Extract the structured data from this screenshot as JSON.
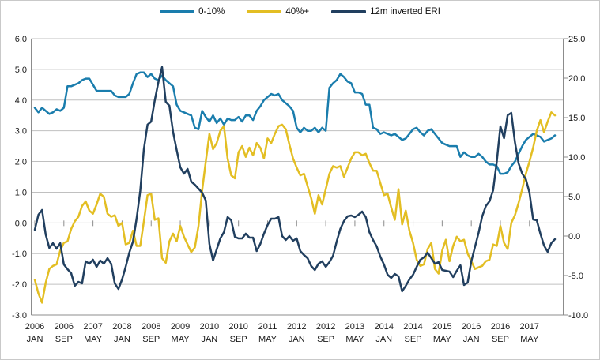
{
  "legend": {
    "items": [
      {
        "label": "0-10%",
        "color": "#1A7DAD"
      },
      {
        "label": "40%+",
        "color": "#E3BE23"
      },
      {
        "label": "12m inverted ERI",
        "color": "#213F5F"
      }
    ]
  },
  "chart_data": {
    "type": "line",
    "title": "",
    "x_interval": "monthly",
    "x_start": "2006 JAN",
    "x_end": "2017 DEC",
    "grid": true,
    "legend_position": "top-center",
    "x_tick_labels": [
      {
        "year": "2006",
        "month": "JAN"
      },
      {
        "year": "2006",
        "month": "SEP"
      },
      {
        "year": "2007",
        "month": "MAY"
      },
      {
        "year": "2008",
        "month": "JAN"
      },
      {
        "year": "2008",
        "month": "SEP"
      },
      {
        "year": "2009",
        "month": "MAY"
      },
      {
        "year": "2010",
        "month": "JAN"
      },
      {
        "year": "2010",
        "month": "SEP"
      },
      {
        "year": "2011",
        "month": "MAY"
      },
      {
        "year": "2012",
        "month": "JAN"
      },
      {
        "year": "2012",
        "month": "SEP"
      },
      {
        "year": "2013",
        "month": "MAY"
      },
      {
        "year": "2014",
        "month": "JAN"
      },
      {
        "year": "2014",
        "month": "SEP"
      },
      {
        "year": "2015",
        "month": "MAY"
      },
      {
        "year": "2016",
        "month": "JAN"
      },
      {
        "year": "2016",
        "month": "SEP"
      },
      {
        "year": "2017",
        "month": "MAY"
      }
    ],
    "x_tick_every_n_months": 8,
    "left_axis": {
      "min": -3.0,
      "max": 6.0,
      "step": 1.0,
      "tick_labels": [
        "6.0",
        "5.0",
        "4.0",
        "3.0",
        "2.0",
        "1.0",
        "0.0",
        "-1.0",
        "-2.0",
        "-3.0"
      ]
    },
    "right_axis": {
      "min": -10.0,
      "max": 25.0,
      "step": 5.0,
      "tick_labels": [
        "25.0",
        "20.0",
        "15.0",
        "10.0",
        "5.0",
        "0.0",
        "-5.0",
        "-10.0"
      ]
    },
    "series": [
      {
        "name": "0-10%",
        "axis": "left",
        "color": "#1A7DAD",
        "values": [
          3.75,
          3.6,
          3.75,
          3.65,
          3.55,
          3.6,
          3.7,
          3.65,
          3.75,
          4.45,
          4.45,
          4.5,
          4.55,
          4.65,
          4.7,
          4.7,
          4.5,
          4.3,
          4.3,
          4.3,
          4.3,
          4.3,
          4.15,
          4.1,
          4.1,
          4.1,
          4.2,
          4.55,
          4.85,
          4.9,
          4.9,
          4.75,
          4.85,
          4.7,
          4.65,
          4.8,
          4.65,
          4.55,
          4.45,
          3.85,
          3.65,
          3.6,
          3.55,
          3.5,
          3.1,
          3.05,
          3.65,
          3.45,
          3.3,
          3.5,
          3.25,
          3.4,
          3.2,
          3.4,
          3.35,
          3.35,
          3.45,
          3.3,
          3.5,
          3.5,
          3.35,
          3.65,
          3.8,
          4.0,
          4.1,
          4.2,
          4.15,
          4.2,
          4.0,
          3.9,
          3.8,
          3.65,
          3.1,
          2.95,
          3.1,
          3.0,
          3.0,
          3.1,
          2.95,
          3.1,
          3.0,
          4.4,
          4.55,
          4.65,
          4.85,
          4.75,
          4.6,
          4.55,
          4.25,
          4.25,
          4.2,
          3.85,
          3.85,
          3.1,
          3.05,
          2.9,
          2.95,
          2.9,
          2.85,
          2.9,
          2.8,
          2.7,
          2.75,
          2.9,
          3.05,
          3.1,
          2.95,
          2.85,
          3.0,
          3.05,
          2.9,
          2.75,
          2.6,
          2.55,
          2.5,
          2.5,
          2.5,
          2.15,
          2.3,
          2.2,
          2.15,
          2.15,
          2.25,
          2.15,
          2.0,
          1.9,
          1.9,
          1.85,
          1.6,
          1.6,
          1.65,
          1.85,
          2.0,
          2.25,
          2.5,
          2.7,
          2.8,
          2.9,
          2.85,
          2.8,
          2.65,
          2.7,
          2.75,
          2.85
        ]
      },
      {
        "name": "40%+",
        "axis": "left",
        "color": "#E3BE23",
        "values": [
          -1.85,
          -2.3,
          -2.6,
          -1.95,
          -1.5,
          -1.4,
          -1.35,
          -0.9,
          -0.65,
          -0.6,
          -0.2,
          0.05,
          0.2,
          0.55,
          0.7,
          0.4,
          0.3,
          0.6,
          0.95,
          0.85,
          0.3,
          0.2,
          0.25,
          -0.1,
          0.0,
          -0.7,
          -0.65,
          -0.25,
          -0.75,
          -0.75,
          0.05,
          0.9,
          0.95,
          0.1,
          0.15,
          -1.15,
          -1.3,
          -0.6,
          -0.35,
          -0.6,
          -0.1,
          -0.45,
          -0.7,
          -0.95,
          -0.8,
          -0.1,
          1.05,
          2.0,
          2.9,
          2.4,
          2.6,
          3.0,
          3.15,
          2.1,
          1.55,
          1.45,
          2.3,
          2.5,
          2.15,
          2.45,
          2.2,
          2.6,
          2.45,
          2.1,
          2.75,
          2.6,
          2.9,
          3.15,
          3.2,
          3.05,
          2.55,
          2.1,
          1.8,
          1.55,
          1.6,
          1.2,
          0.8,
          0.3,
          0.9,
          0.6,
          1.1,
          1.6,
          1.85,
          1.8,
          1.85,
          1.5,
          1.8,
          2.1,
          2.3,
          2.3,
          2.2,
          2.25,
          1.95,
          1.7,
          1.7,
          1.3,
          0.9,
          0.95,
          0.5,
          0.1,
          1.1,
          -0.05,
          0.4,
          -0.25,
          -0.65,
          -1.2,
          -1.4,
          -1.35,
          -0.85,
          -0.65,
          -1.5,
          -1.65,
          -0.9,
          -0.55,
          -1.25,
          -0.75,
          -0.45,
          -0.6,
          -0.55,
          -1.0,
          -1.25,
          -1.5,
          -1.45,
          -1.4,
          -1.25,
          -1.2,
          -0.7,
          -0.75,
          -0.1,
          -0.65,
          -0.85,
          0.0,
          0.25,
          0.65,
          1.1,
          1.6,
          2.0,
          2.45,
          3.0,
          3.35,
          2.95,
          3.3,
          3.6,
          3.5
        ]
      },
      {
        "name": "12m inverted ERI",
        "axis": "right",
        "color": "#213F5F",
        "values": [
          0.8,
          2.7,
          3.3,
          0.2,
          -1.5,
          -0.9,
          -1.6,
          -0.9,
          -3.6,
          -4.2,
          -4.7,
          -6.3,
          -5.8,
          -6.0,
          -3.2,
          -3.5,
          -3.0,
          -3.9,
          -3.1,
          -3.5,
          -2.8,
          -3.5,
          -6.0,
          -6.7,
          -5.5,
          -3.9,
          -2.1,
          -0.7,
          2.2,
          5.7,
          11.0,
          14.1,
          14.5,
          17.2,
          19.5,
          21.4,
          17.0,
          16.5,
          13.2,
          10.9,
          8.7,
          7.9,
          8.5,
          6.9,
          6.5,
          6.0,
          5.5,
          4.5,
          -1.0,
          -3.1,
          -1.7,
          -0.3,
          0.5,
          2.4,
          2.0,
          -0.1,
          -0.3,
          -0.3,
          0.3,
          -0.2,
          -0.2,
          -1.9,
          -1.0,
          0.3,
          1.4,
          2.2,
          2.2,
          2.4,
          0.0,
          -0.5,
          0.0,
          -0.6,
          -0.3,
          -1.9,
          -2.4,
          -2.8,
          -3.8,
          -4.3,
          -3.5,
          -3.2,
          -3.9,
          -3.3,
          -2.5,
          -0.7,
          0.9,
          1.9,
          2.5,
          2.6,
          2.4,
          2.7,
          3.1,
          2.4,
          0.5,
          -0.5,
          -1.3,
          -2.6,
          -3.6,
          -4.9,
          -5.3,
          -4.8,
          -5.1,
          -7.0,
          -6.3,
          -5.5,
          -4.9,
          -3.9,
          -3.0,
          -2.7,
          -2.1,
          -2.8,
          -3.5,
          -3.3,
          -4.3,
          -4.4,
          -4.5,
          -5.2,
          -4.4,
          -3.7,
          -6.2,
          -5.9,
          -3.2,
          -1.4,
          0.4,
          2.5,
          3.8,
          4.4,
          5.8,
          9.4,
          13.9,
          12.4,
          15.3,
          15.6,
          11.9,
          9.2,
          7.9,
          7.2,
          5.5,
          2.1,
          2.0,
          0.3,
          -1.2,
          -2.0,
          -0.9,
          -0.4
        ]
      }
    ],
    "style": {
      "grid_color": "#C0C0C0",
      "axis_color": "#8C8C8C",
      "text_color": "#1a1a1a",
      "background": "#ffffff",
      "line_width": 2.5
    }
  }
}
